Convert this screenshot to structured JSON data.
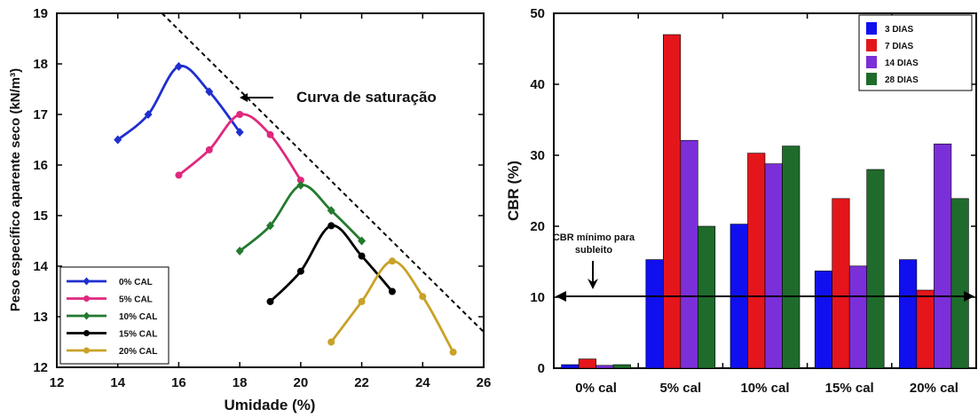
{
  "chart_data": [
    {
      "type": "line",
      "xlabel": "Umidade (%)",
      "ylabel": "Peso específico aparente seco (kN/m³)",
      "xlim": [
        12,
        26
      ],
      "ylim": [
        12,
        19
      ],
      "xticks": [
        "12",
        "14",
        "16",
        "18",
        "20",
        "22",
        "24",
        "26"
      ],
      "yticks": [
        "12",
        "13",
        "14",
        "15",
        "16",
        "17",
        "18",
        "19"
      ],
      "grid": false,
      "legend_position": "bottom-left",
      "series": [
        {
          "name": "0% CAL",
          "color": "#1f2fd0",
          "marker": "diamond",
          "points": [
            [
              14,
              16.5
            ],
            [
              15,
              17.0
            ],
            [
              16,
              17.95
            ],
            [
              17,
              17.45
            ],
            [
              18,
              16.65
            ]
          ]
        },
        {
          "name": "5% CAL",
          "color": "#e0287e",
          "marker": "circle",
          "points": [
            [
              16,
              15.8
            ],
            [
              17,
              16.3
            ],
            [
              18,
              17.0
            ],
            [
              19,
              16.6
            ],
            [
              20,
              15.7
            ]
          ]
        },
        {
          "name": "10% CAL",
          "color": "#237a2f",
          "marker": "diamond",
          "points": [
            [
              18,
              14.3
            ],
            [
              19,
              14.8
            ],
            [
              20,
              15.6
            ],
            [
              21,
              15.1
            ],
            [
              22,
              14.5
            ]
          ]
        },
        {
          "name": "15% CAL",
          "color": "#000000",
          "marker": "circle",
          "points": [
            [
              19,
              13.3
            ],
            [
              20,
              13.9
            ],
            [
              21,
              14.8
            ],
            [
              22,
              14.2
            ],
            [
              23,
              13.5
            ]
          ]
        },
        {
          "name": "20% CAL",
          "color": "#c9a227",
          "marker": "circle",
          "points": [
            [
              21,
              12.5
            ],
            [
              22,
              13.3
            ],
            [
              23,
              14.1
            ],
            [
              24,
              13.4
            ],
            [
              25,
              12.3
            ]
          ]
        }
      ],
      "saturation_curve": {
        "label": "Curva de saturação",
        "color": "#000000",
        "points": [
          [
            15.45,
            19.0
          ],
          [
            26.0,
            12.7
          ]
        ]
      }
    },
    {
      "type": "bar",
      "xlabel": "",
      "ylabel": "CBR (%)",
      "ylim": [
        0,
        50
      ],
      "yticks": [
        "0",
        "10",
        "20",
        "30",
        "40",
        "50"
      ],
      "categories": [
        "0% cal",
        "5% cal",
        "10% cal",
        "15% cal",
        "20% cal"
      ],
      "grid": false,
      "legend_position": "top-right",
      "series": [
        {
          "name": "3 DIAS",
          "color": "#1010ee",
          "values": [
            0.5,
            15.3,
            20.3,
            13.7,
            15.3
          ]
        },
        {
          "name": "7 DIAS",
          "color": "#e4161b",
          "values": [
            1.3,
            47.0,
            30.3,
            23.9,
            11.0
          ]
        },
        {
          "name": "14 DIAS",
          "color": "#7b2fd9",
          "values": [
            0.4,
            32.1,
            28.8,
            14.4,
            31.6
          ]
        },
        {
          "name": "28 DIAS",
          "color": "#1f6b2c",
          "values": [
            0.5,
            20.0,
            31.3,
            28.0,
            23.9
          ]
        }
      ],
      "reference_line": {
        "value": 10.0,
        "label_line1": "CBR mínimo para",
        "label_line2": "subleito"
      }
    }
  ]
}
